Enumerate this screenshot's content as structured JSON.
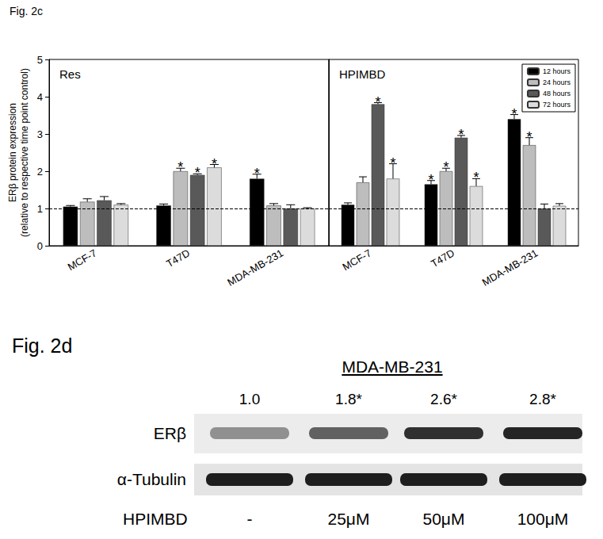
{
  "figure_c": {
    "label": "Fig. 2c"
  },
  "chart_data": [
    {
      "type": "bar",
      "title": "Res",
      "ylabel": "ERβ protein expression\n(relative to respective time point control)",
      "categories": [
        "MCF-7",
        "T47D",
        "MDA-MB-231"
      ],
      "series": [
        {
          "color": "#000000",
          "values": [
            1.05,
            1.08,
            1.8
          ],
          "errors": [
            0.03,
            0.04,
            0.12
          ],
          "significance": [
            null,
            null,
            "*"
          ]
        },
        {
          "color": "#bdbdbd",
          "values": [
            1.18,
            2.0,
            1.08
          ],
          "errors": [
            0.08,
            0.08,
            0.05
          ],
          "significance": [
            null,
            "*",
            null
          ]
        },
        {
          "color": "#595959",
          "values": [
            1.22,
            1.9,
            1.0
          ],
          "errors": [
            0.1,
            0.03,
            0.1
          ],
          "significance": [
            null,
            "*",
            null
          ]
        },
        {
          "color": "#dcdcdc",
          "values": [
            1.1,
            2.1,
            1.0
          ],
          "errors": [
            0.03,
            0.08,
            0.02
          ],
          "significance": [
            null,
            "*",
            null
          ]
        }
      ],
      "reference_value": 1,
      "ylim": [
        0,
        5
      ],
      "yticks": [
        0,
        1,
        2,
        3,
        4,
        5
      ],
      "grid": false
    },
    {
      "type": "bar",
      "title": "HPIMBD",
      "categories": [
        "MCF-7",
        "T47D",
        "MDA-MB-231"
      ],
      "series": [
        {
          "name": "12 hours",
          "color": "#000000",
          "values": [
            1.1,
            1.65,
            3.4
          ],
          "errors": [
            0.05,
            0.1,
            0.12
          ],
          "significance": [
            null,
            "*",
            "*"
          ]
        },
        {
          "name": "24 hours",
          "color": "#bdbdbd",
          "values": [
            1.7,
            2.0,
            2.7
          ],
          "errors": [
            0.15,
            0.08,
            0.2
          ],
          "significance": [
            null,
            "*",
            "*"
          ]
        },
        {
          "name": "48 hours",
          "color": "#595959",
          "values": [
            3.8,
            2.9,
            1.0
          ],
          "errors": [
            0.04,
            0.06,
            0.12
          ],
          "significance": [
            "*",
            "*",
            null
          ]
        },
        {
          "name": "72 hours",
          "color": "#dcdcdc",
          "values": [
            1.8,
            1.6,
            1.07
          ],
          "errors": [
            0.4,
            0.2,
            0.06
          ],
          "significance": [
            "*",
            "*",
            null
          ]
        }
      ],
      "reference_value": 1,
      "legend": "upper right",
      "ylim": [
        0,
        5
      ],
      "yticks": [
        0,
        1,
        2,
        3,
        4,
        5
      ],
      "grid": false,
      "tick_labels": "x"
    }
  ],
  "figure_d": {
    "label": "Fig. 2d",
    "cell_line": "MDA-MB-231",
    "quantification": [
      {
        "value": 1.0,
        "label": "1.0"
      },
      {
        "value": 1.8,
        "label": "1.8*"
      },
      {
        "value": 2.6,
        "label": "2.6*"
      },
      {
        "value": 2.8,
        "label": "2.8*"
      }
    ],
    "rows": [
      "ERβ",
      "α-Tubulin"
    ],
    "treatment_label": "HPIMBD",
    "treatments": [
      "-",
      "25μM",
      "50μM",
      "100μM"
    ]
  }
}
